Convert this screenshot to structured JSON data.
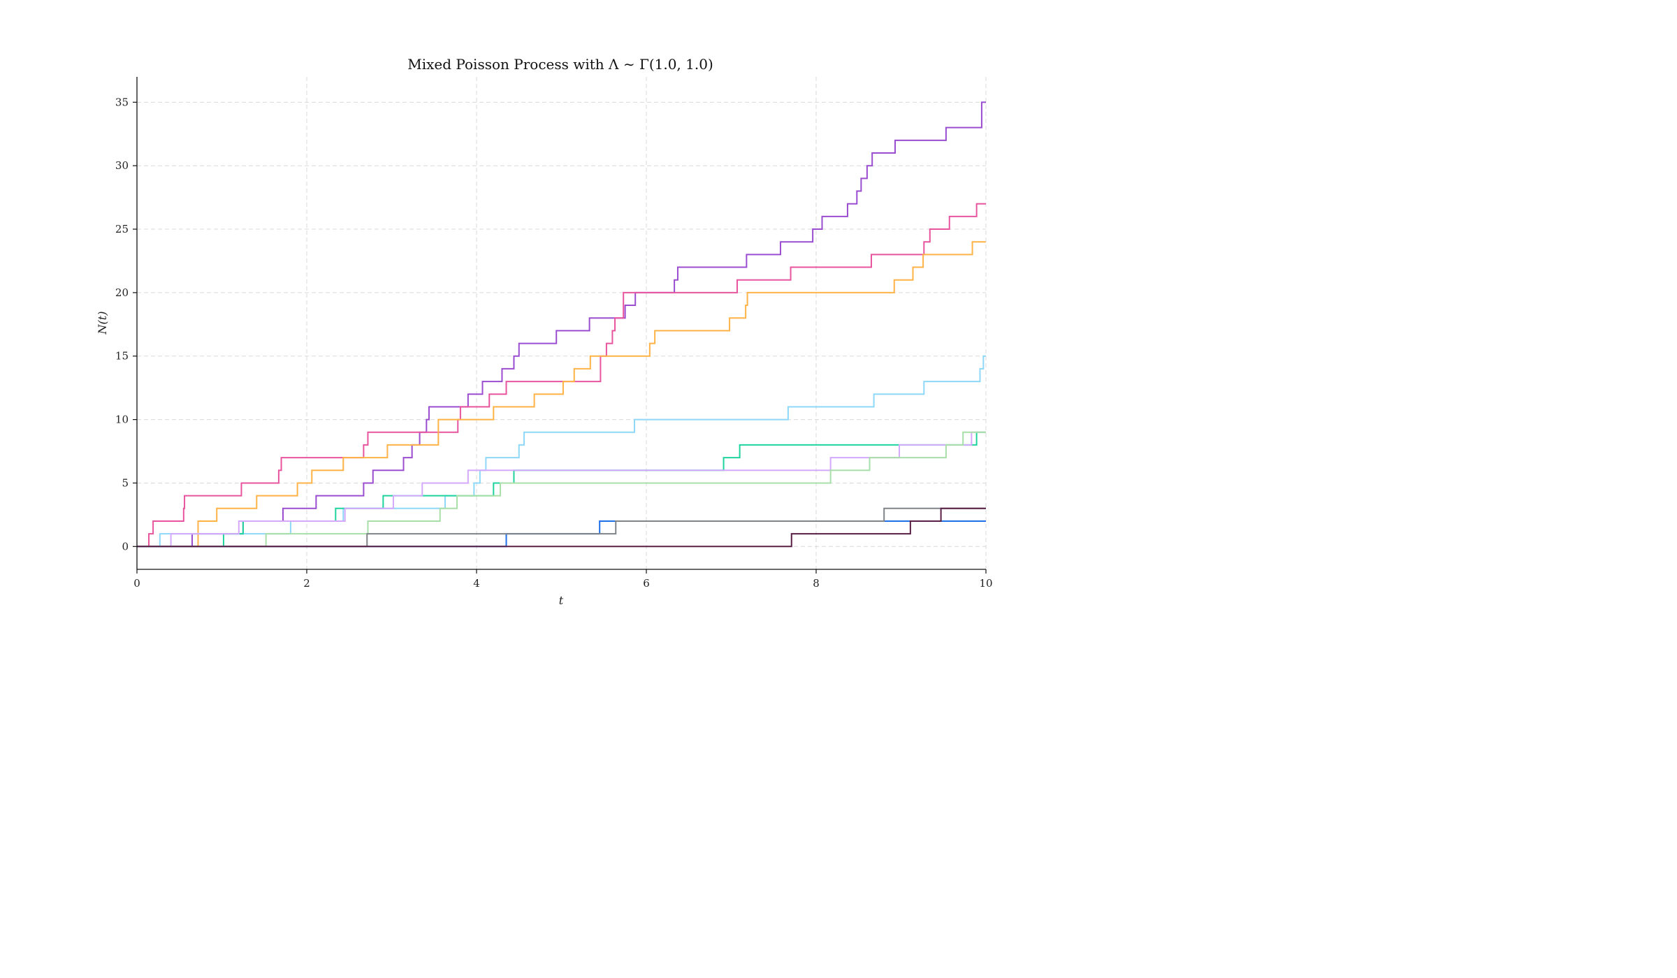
{
  "chart_data": {
    "type": "line",
    "step": "post",
    "title": "Mixed Poisson Process with Λ ∼ Γ(1.0, 1.0)",
    "xlabel": "t",
    "ylabel": "N(t)",
    "xlim": [
      0,
      10
    ],
    "ylim": [
      -1.8,
      37
    ],
    "xticks": [
      0,
      2,
      4,
      6,
      8,
      10
    ],
    "yticks": [
      0,
      5,
      10,
      15,
      20,
      25,
      30,
      35
    ],
    "grid": true,
    "legend": "none",
    "series": [
      {
        "color": "#9b4dd0",
        "x": [
          0,
          0.65,
          1.25,
          1.72,
          2.11,
          2.67,
          2.78,
          3.14,
          3.24,
          3.33,
          3.41,
          3.44,
          3.9,
          4.07,
          4.3,
          4.44,
          4.5,
          4.94,
          5.33,
          5.75,
          5.87,
          6.33,
          6.37,
          7.18,
          7.58,
          7.96,
          8.07,
          8.37,
          8.48,
          8.53,
          8.6,
          8.66,
          8.93,
          9.53,
          9.95
        ],
        "y": [
          0,
          1,
          2,
          3,
          4,
          5,
          6,
          7,
          8,
          9,
          10,
          11,
          12,
          13,
          14,
          15,
          16,
          17,
          18,
          19,
          20,
          21,
          22,
          23,
          24,
          25,
          26,
          27,
          28,
          29,
          30,
          31,
          32,
          33,
          35
        ]
      },
      {
        "color": "#e8559e",
        "x": [
          0,
          0.14,
          0.19,
          0.55,
          0.56,
          1.23,
          1.67,
          1.7,
          2.67,
          2.72,
          3.78,
          3.81,
          4.15,
          4.35,
          5.46,
          5.53,
          5.6,
          5.63,
          5.73,
          7.07,
          7.7,
          8.65,
          9.27,
          9.34,
          9.57,
          9.89
        ],
        "y": [
          0,
          1,
          2,
          3,
          4,
          5,
          6,
          7,
          8,
          9,
          10,
          11,
          12,
          13,
          15,
          16,
          17,
          18,
          20,
          21,
          22,
          23,
          24,
          25,
          26,
          27
        ]
      },
      {
        "color": "#ffb347",
        "x": [
          0,
          0.72,
          0.94,
          1.41,
          1.89,
          2.06,
          2.43,
          2.95,
          3.55,
          4.2,
          4.68,
          5.02,
          5.15,
          5.34,
          6.04,
          6.1,
          6.98,
          7.17,
          7.19,
          8.92,
          9.14,
          9.26,
          9.84
        ],
        "y": [
          0,
          2,
          3,
          4,
          5,
          6,
          7,
          8,
          10,
          11,
          12,
          13,
          14,
          15,
          16,
          17,
          18,
          19,
          20,
          21,
          22,
          23,
          24
        ]
      },
      {
        "color": "#8ed8f8",
        "x": [
          0,
          0.27,
          1.81,
          2.43,
          3.63,
          3.97,
          4.04,
          4.11,
          4.5,
          4.56,
          5.86,
          7.67,
          8.68,
          9.27,
          9.93,
          9.97
        ],
        "y": [
          0,
          1,
          2,
          3,
          4,
          5,
          6,
          7,
          8,
          9,
          10,
          11,
          12,
          13,
          14,
          15
        ]
      },
      {
        "color": "#1fd39f",
        "x": [
          0,
          1.02,
          1.25,
          2.34,
          2.9,
          4.2,
          4.44,
          6.91,
          7.1,
          8.92,
          9.89
        ],
        "y": [
          0,
          1,
          2,
          3,
          4,
          5,
          6,
          7,
          8,
          8,
          9
        ]
      },
      {
        "color": "#d4a9fb",
        "x": [
          0,
          0.4,
          1.2,
          2.45,
          3.02,
          3.36,
          3.9,
          6.93,
          8.17,
          8.98,
          9.83
        ],
        "y": [
          0,
          1,
          2,
          3,
          4,
          5,
          6,
          6,
          7,
          8,
          9
        ]
      },
      {
        "color": "#a8dfa8",
        "x": [
          0,
          1.52,
          2.72,
          3.57,
          3.77,
          4.28,
          8.17,
          8.63,
          9.53,
          9.73
        ],
        "y": [
          0,
          1,
          2,
          3,
          4,
          5,
          6,
          7,
          8,
          9
        ]
      },
      {
        "color": "#1f6fe8",
        "x": [
          0,
          4.35,
          5.45,
          10
        ],
        "y": [
          0,
          1,
          2,
          2
        ]
      },
      {
        "color": "#808488",
        "x": [
          0,
          2.71,
          5.64,
          8.8,
          9.47,
          10
        ],
        "y": [
          0,
          1,
          2,
          3,
          3,
          3
        ]
      },
      {
        "color": "#5a1f44",
        "x": [
          0,
          7.71,
          9.11,
          9.47,
          10
        ],
        "y": [
          0,
          1,
          2,
          3,
          3
        ]
      }
    ]
  }
}
